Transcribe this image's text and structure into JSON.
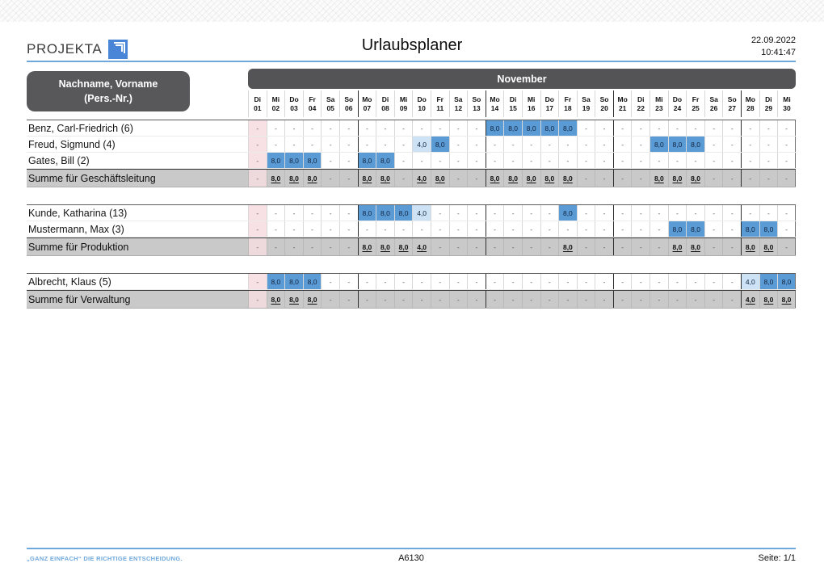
{
  "header": {
    "logo_text": "PROJEKTA",
    "title": "Urlaubsplaner",
    "date": "22.09.2022",
    "time": "10:41:47"
  },
  "colors": {
    "accent_blue": "#6fa8dc",
    "band_gray": "#58585a",
    "cell_full_blue": "#5b9bd5",
    "cell_half_blue": "#cde2f5",
    "holiday_pink": "#f8e1e4",
    "sum_gray": "#c9c9c9"
  },
  "table": {
    "name_header_line1": "Nachname, Vorname",
    "name_header_line2": "(Pers.-Nr.)",
    "month_label": "November",
    "days": [
      {
        "wd": "Di",
        "d": "01",
        "holiday": true
      },
      {
        "wd": "Mi",
        "d": "02"
      },
      {
        "wd": "Do",
        "d": "03"
      },
      {
        "wd": "Fr",
        "d": "04"
      },
      {
        "wd": "Sa",
        "d": "05"
      },
      {
        "wd": "So",
        "d": "06"
      },
      {
        "wd": "Mo",
        "d": "07"
      },
      {
        "wd": "Di",
        "d": "08"
      },
      {
        "wd": "Mi",
        "d": "09"
      },
      {
        "wd": "Do",
        "d": "10"
      },
      {
        "wd": "Fr",
        "d": "11"
      },
      {
        "wd": "Sa",
        "d": "12"
      },
      {
        "wd": "So",
        "d": "13"
      },
      {
        "wd": "Mo",
        "d": "14"
      },
      {
        "wd": "Di",
        "d": "15"
      },
      {
        "wd": "Mi",
        "d": "16"
      },
      {
        "wd": "Do",
        "d": "17"
      },
      {
        "wd": "Fr",
        "d": "18"
      },
      {
        "wd": "Sa",
        "d": "19"
      },
      {
        "wd": "So",
        "d": "20"
      },
      {
        "wd": "Mo",
        "d": "21"
      },
      {
        "wd": "Di",
        "d": "22"
      },
      {
        "wd": "Mi",
        "d": "23"
      },
      {
        "wd": "Do",
        "d": "24"
      },
      {
        "wd": "Fr",
        "d": "25"
      },
      {
        "wd": "Sa",
        "d": "26"
      },
      {
        "wd": "So",
        "d": "27"
      },
      {
        "wd": "Mo",
        "d": "28"
      },
      {
        "wd": "Di",
        "d": "29"
      },
      {
        "wd": "Mi",
        "d": "30"
      }
    ],
    "groups": [
      {
        "rows": [
          {
            "name": "Benz, Carl-Friedrich (6)",
            "cells": {
              "14": "8,0",
              "15": "8,0",
              "16": "8,0",
              "17": "8,0",
              "18": "8,0"
            }
          },
          {
            "name": "Freud, Sigmund (4)",
            "cells": {
              "10": "4,0",
              "11": "8,0",
              "23": "8,0",
              "24": "8,0",
              "25": "8,0"
            }
          },
          {
            "name": "Gates, Bill (2)",
            "cells": {
              "02": "8,0",
              "03": "8,0",
              "04": "8,0",
              "07": "8,0",
              "08": "8,0"
            }
          }
        ],
        "sum": {
          "name": "Summe für Geschäftsleitung",
          "cells": {
            "02": "8,0",
            "03": "8,0",
            "04": "8,0",
            "07": "8,0",
            "08": "8,0",
            "10": "4,0",
            "11": "8,0",
            "14": "8,0",
            "15": "8,0",
            "16": "8,0",
            "17": "8,0",
            "18": "8,0",
            "23": "8,0",
            "24": "8,0",
            "25": "8,0"
          }
        }
      },
      {
        "rows": [
          {
            "name": "Kunde, Katharina (13)",
            "cells": {
              "07": "8,0",
              "08": "8,0",
              "09": "8,0",
              "10": "4,0",
              "18": "8,0"
            }
          },
          {
            "name": "Mustermann, Max (3)",
            "cells": {
              "24": "8,0",
              "25": "8,0",
              "28": "8,0",
              "29": "8,0"
            }
          }
        ],
        "sum": {
          "name": "Summe für Produktion",
          "cells": {
            "07": "8,0",
            "08": "8,0",
            "09": "8,0",
            "10": "4,0",
            "18": "8,0",
            "24": "8,0",
            "25": "8,0",
            "28": "8,0",
            "29": "8,0"
          }
        }
      },
      {
        "rows": [
          {
            "name": "Albrecht, Klaus (5)",
            "cells": {
              "02": "8,0",
              "03": "8,0",
              "04": "8,0",
              "28": "4,0",
              "29": "8,0",
              "30": "8,0"
            }
          }
        ],
        "sum": {
          "name": "Summe für Verwaltung",
          "cells": {
            "02": "8,0",
            "03": "8,0",
            "04": "8,0",
            "28": "4,0",
            "29": "8,0",
            "30": "8,0"
          }
        }
      }
    ]
  },
  "footer": {
    "slogan": "„GANZ EINFACH“ DIE RICHTIGE ENTSCHEIDUNG.",
    "code": "A6130",
    "page_label": "Seite: 1/1"
  }
}
